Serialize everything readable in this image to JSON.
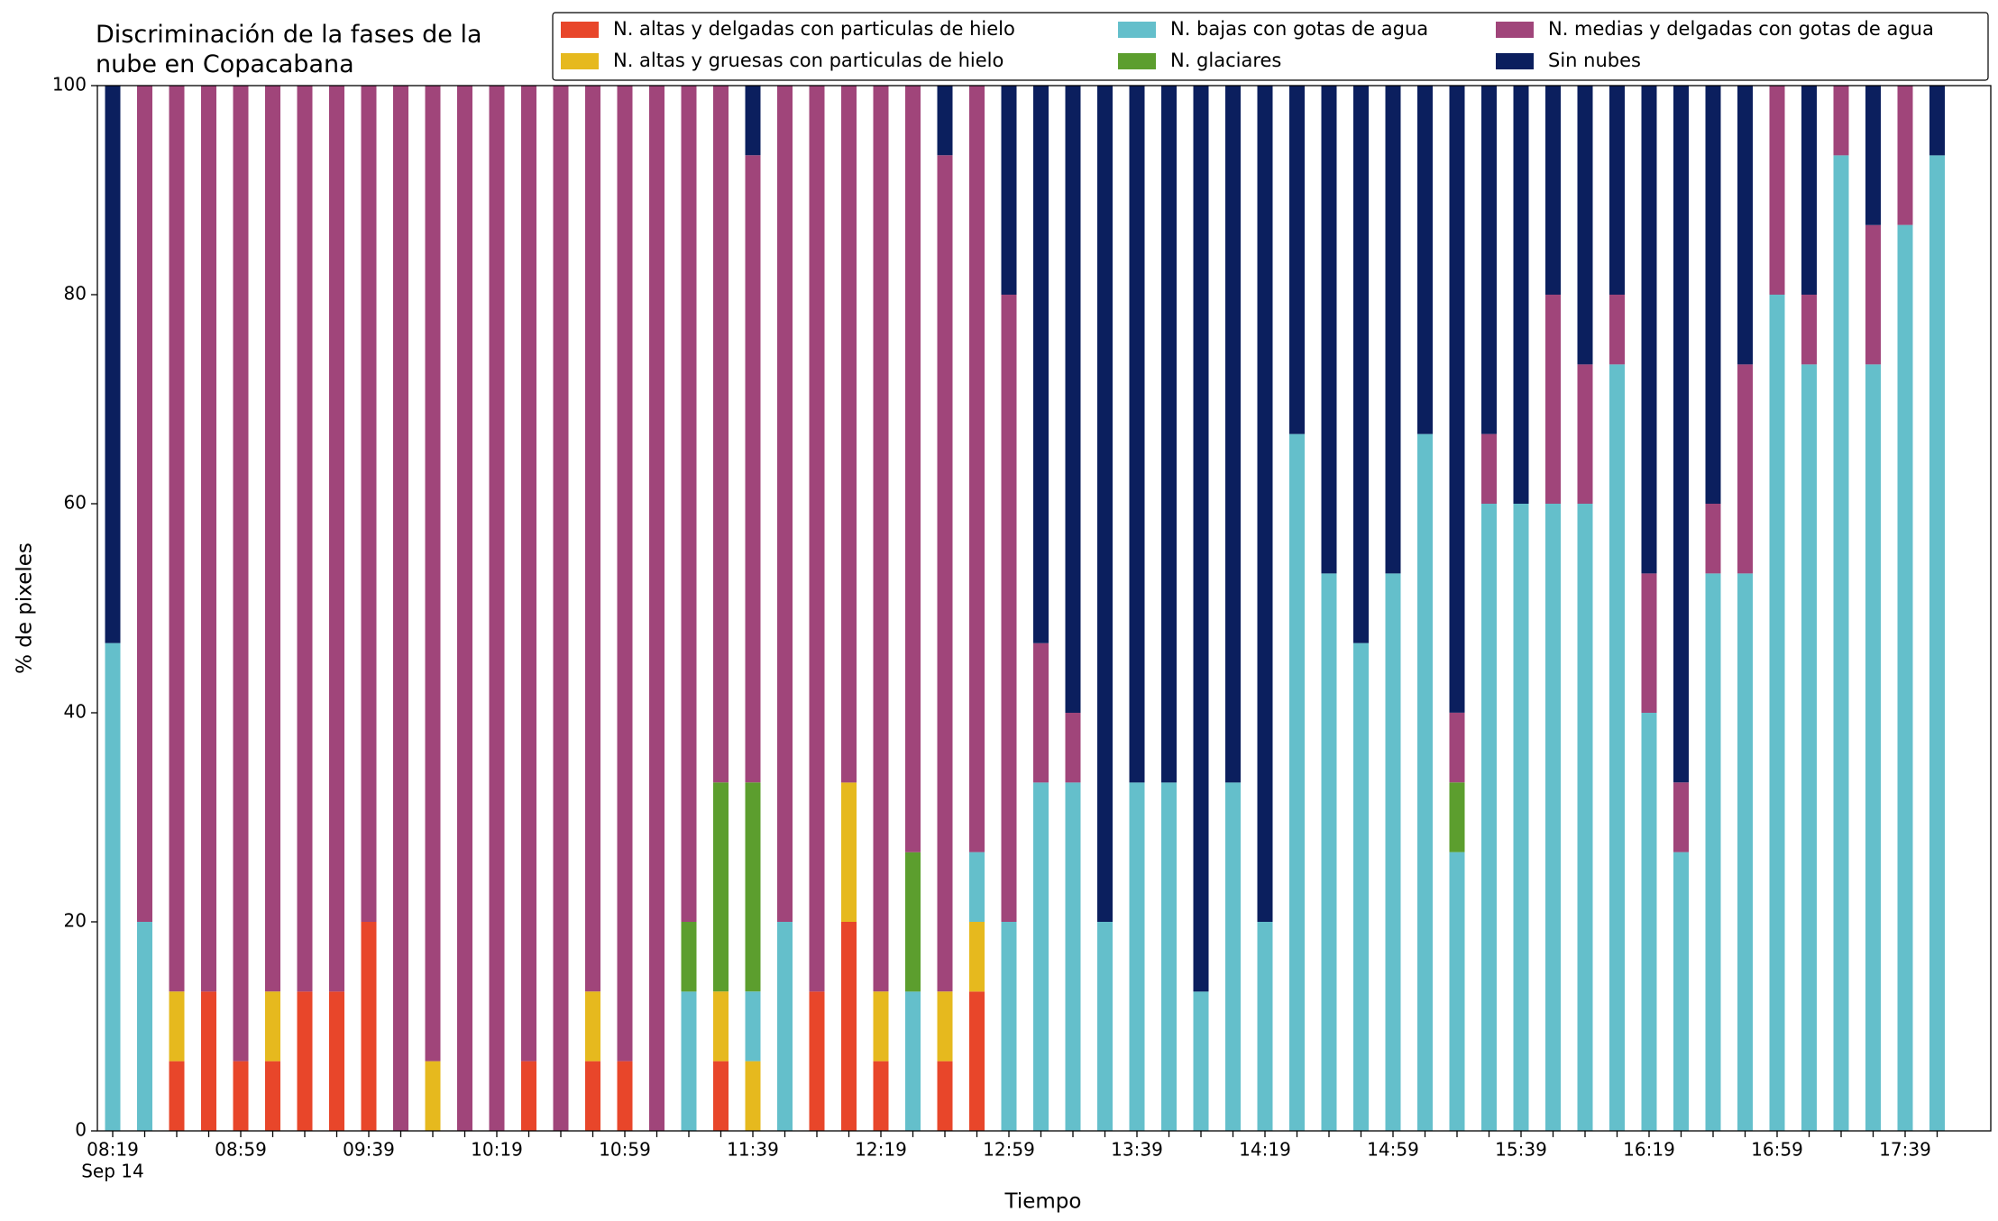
{
  "chart_data": {
    "type": "stacked_bar",
    "title": "Discriminación de la fases de la nube en Copacabana",
    "x_label": "Tiempo",
    "y_label": "% de pixeles",
    "x_sublabel": "Sep 14",
    "categories": [
      "08:19",
      null,
      null,
      null,
      "08:59",
      null,
      null,
      null,
      "09:39",
      null,
      null,
      null,
      "10:19",
      null,
      null,
      null,
      "10:59",
      null,
      null,
      null,
      "11:39",
      null,
      null,
      null,
      "12:19",
      null,
      null,
      null,
      "12:59",
      null,
      null,
      null,
      "13:39",
      null,
      null,
      null,
      "14:19",
      null,
      null,
      null,
      "14:59",
      null,
      null,
      null,
      "15:39",
      null,
      null,
      null,
      "16:19",
      null,
      null,
      null,
      "16:59",
      null,
      null,
      null,
      "17:39",
      null
    ],
    "ylim": [
      0,
      100
    ],
    "yticks": [
      0,
      20,
      40,
      60,
      80,
      100
    ],
    "legend": "top",
    "series": [
      {
        "name": "N. altas y delgadas con particulas de hielo",
        "color": "#e8462a",
        "values": [
          0,
          0,
          6.67,
          13.33,
          6.67,
          6.67,
          13.33,
          13.33,
          20,
          0,
          0,
          0,
          0,
          6.67,
          0,
          6.67,
          6.67,
          0,
          0,
          6.67,
          0,
          0,
          13.33,
          20,
          6.67,
          0,
          6.67,
          13.33,
          0,
          0,
          0,
          0,
          0,
          0,
          0,
          0,
          0,
          0,
          0,
          0,
          0,
          0,
          0,
          0,
          0,
          0,
          0,
          0,
          0,
          0,
          0,
          0,
          0,
          0,
          0,
          0,
          0,
          0
        ]
      },
      {
        "name": "N. altas y gruesas con particulas de hielo",
        "color": "#e6b91e",
        "values": [
          0,
          0,
          6.67,
          0,
          0,
          6.67,
          0,
          0,
          0,
          0,
          6.67,
          0,
          0,
          0,
          0,
          6.67,
          0,
          0,
          0,
          6.67,
          6.67,
          0,
          0,
          13.33,
          6.67,
          0,
          6.67,
          6.67,
          0,
          0,
          0,
          0,
          0,
          0,
          0,
          0,
          0,
          0,
          0,
          0,
          0,
          0,
          0,
          0,
          0,
          0,
          0,
          0,
          0,
          0,
          0,
          0,
          0,
          0,
          0,
          0,
          0,
          0
        ]
      },
      {
        "name": "N. bajas con gotas de agua",
        "color": "#64bfcb",
        "values": [
          46.67,
          20,
          0,
          0,
          0,
          0,
          0,
          0,
          0,
          0,
          0,
          0,
          0,
          0,
          0,
          0,
          0,
          0,
          13.33,
          0,
          6.67,
          20,
          0,
          0,
          0,
          13.33,
          0,
          6.67,
          20,
          33.33,
          33.33,
          20,
          33.33,
          33.33,
          13.33,
          33.33,
          20,
          66.67,
          53.33,
          46.67,
          53.33,
          66.67,
          26.67,
          60,
          60,
          60,
          60,
          73.33,
          40,
          26.67,
          53.33,
          53.33,
          80,
          73.33,
          93.33,
          73.33,
          86.67,
          93.33
        ]
      },
      {
        "name": "N. glaciares",
        "color": "#5c9e2e",
        "values": [
          0,
          0,
          0,
          0,
          0,
          0,
          0,
          0,
          0,
          0,
          0,
          0,
          0,
          0,
          0,
          0,
          0,
          0,
          6.67,
          20,
          20,
          0,
          0,
          0,
          0,
          13.33,
          0,
          0,
          0,
          0,
          0,
          0,
          0,
          0,
          0,
          0,
          0,
          0,
          0,
          0,
          0,
          0,
          6.67,
          0,
          0,
          0,
          0,
          0,
          0,
          0,
          0,
          0,
          0,
          0,
          0,
          0,
          0,
          0
        ]
      },
      {
        "name": "N. medias y delgadas con gotas de agua",
        "color": "#a0457a",
        "values": [
          0,
          80,
          86.67,
          86.67,
          93.33,
          86.67,
          86.67,
          86.67,
          80,
          100,
          93.33,
          100,
          100,
          93.33,
          100,
          86.67,
          93.33,
          100,
          80,
          66.67,
          60,
          80,
          86.67,
          66.67,
          86.67,
          73.33,
          80,
          73.33,
          60,
          13.33,
          6.67,
          0,
          0,
          0,
          0,
          0,
          0,
          0,
          0,
          0,
          0,
          0,
          6.67,
          6.67,
          0,
          20,
          13.33,
          6.67,
          13.33,
          6.67,
          6.67,
          20,
          20,
          6.67,
          6.67,
          13.33,
          13.33,
          0
        ]
      },
      {
        "name": "Sin nubes",
        "color": "#0b1f5e",
        "values": [
          53.33,
          0,
          0,
          0,
          0,
          0,
          0,
          0,
          0,
          0,
          0,
          0,
          0,
          0,
          0,
          0,
          0,
          0,
          0,
          0,
          6.67,
          0,
          0,
          0,
          0,
          0,
          6.67,
          0,
          20,
          53.33,
          60,
          80,
          66.67,
          66.67,
          86.67,
          66.67,
          80,
          33.33,
          46.67,
          53.33,
          46.67,
          33.33,
          60,
          33.33,
          40,
          20,
          26.67,
          20,
          46.67,
          66.67,
          40,
          26.67,
          0,
          20,
          0,
          13.33,
          0,
          6.67
        ]
      }
    ]
  }
}
